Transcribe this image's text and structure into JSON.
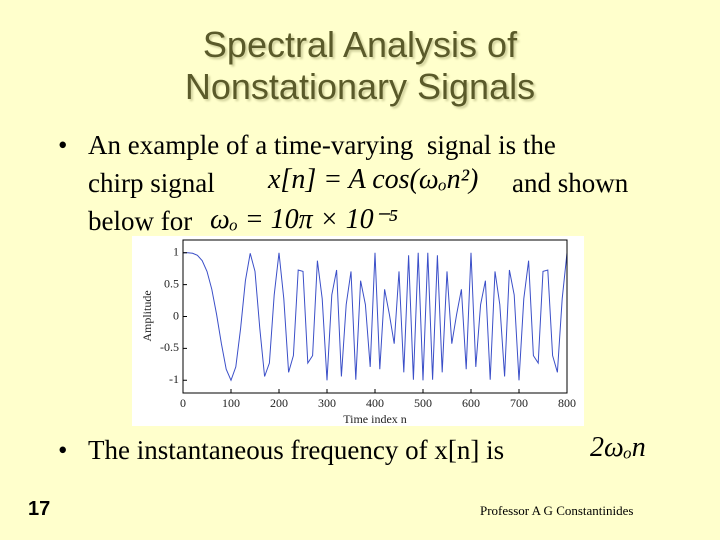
{
  "slide": {
    "title_lines": [
      "Spectral Analysis of",
      "Nonstationary Signals"
    ],
    "bullet1": {
      "line1": "An example of a time-varying  signal is the",
      "line2a": "chirp signal",
      "equation1": "x[n] = A cos(ωₒn²)",
      "line2b": "and shown",
      "line3": "below for",
      "equation2": "ωₒ = 10π × 10⁻⁵"
    },
    "bullet2": {
      "text": "The instantaneous frequency of x[n] is",
      "equation": "2ωₒn"
    },
    "page_number": "17",
    "footer": "Professor A G Constantinides"
  },
  "chart_data": {
    "type": "line",
    "xlabel": "Time index n",
    "ylabel": "Amplitude",
    "xlim": [
      0,
      800
    ],
    "xticks": [
      0,
      100,
      200,
      300,
      400,
      500,
      600,
      700,
      800
    ],
    "ylim": [
      -1.2,
      1.2
    ],
    "yticks": [
      -1,
      -0.5,
      0,
      0.5,
      1
    ],
    "series": [
      {
        "color": "#3b4fc8",
        "x": [
          0,
          10,
          20,
          30,
          40,
          50,
          60,
          70,
          80,
          90,
          100,
          110,
          120,
          130,
          140,
          150,
          160,
          170,
          180,
          190,
          200,
          210,
          220,
          230,
          240,
          250,
          260,
          270,
          280,
          290,
          300,
          310,
          320,
          330,
          340,
          350,
          360,
          370,
          380,
          390,
          400,
          410,
          420,
          430,
          440,
          450,
          460,
          470,
          480,
          490,
          500,
          510,
          520,
          530,
          540,
          550,
          560,
          570,
          580,
          590,
          600,
          610,
          620,
          630,
          640,
          650,
          660,
          670,
          680,
          690,
          700,
          710,
          720,
          730,
          740,
          750,
          760,
          770,
          780,
          790,
          800
        ],
        "values": [
          1,
          1,
          0.992,
          0.96,
          0.876,
          0.707,
          0.426,
          0.031,
          -0.426,
          -0.827,
          -1,
          -0.79,
          -0.187,
          0.562,
          0.992,
          0.707,
          -0.187,
          -0.941,
          -0.729,
          0.339,
          1,
          0.279,
          -0.876,
          -0.613,
          0.729,
          0.707,
          -0.729,
          -0.613,
          0.876,
          0.279,
          -1,
          0.339,
          0.729,
          -0.941,
          0.187,
          0.707,
          -0.992,
          0.562,
          0.187,
          -0.79,
          1,
          -0.827,
          0.426,
          0.031,
          -0.426,
          0.707,
          -0.876,
          0.96,
          -0.992,
          1,
          -1,
          1,
          -0.992,
          0.96,
          -0.876,
          0.707,
          -0.426,
          0.031,
          0.426,
          -0.827,
          1,
          -0.79,
          0.187,
          0.562,
          -0.992,
          0.707,
          0.187,
          -0.941,
          0.729,
          0.339,
          -1,
          0.279,
          0.876,
          -0.613,
          -0.729,
          0.707,
          0.729,
          -0.613,
          -0.876,
          0.279,
          1
        ]
      }
    ]
  }
}
